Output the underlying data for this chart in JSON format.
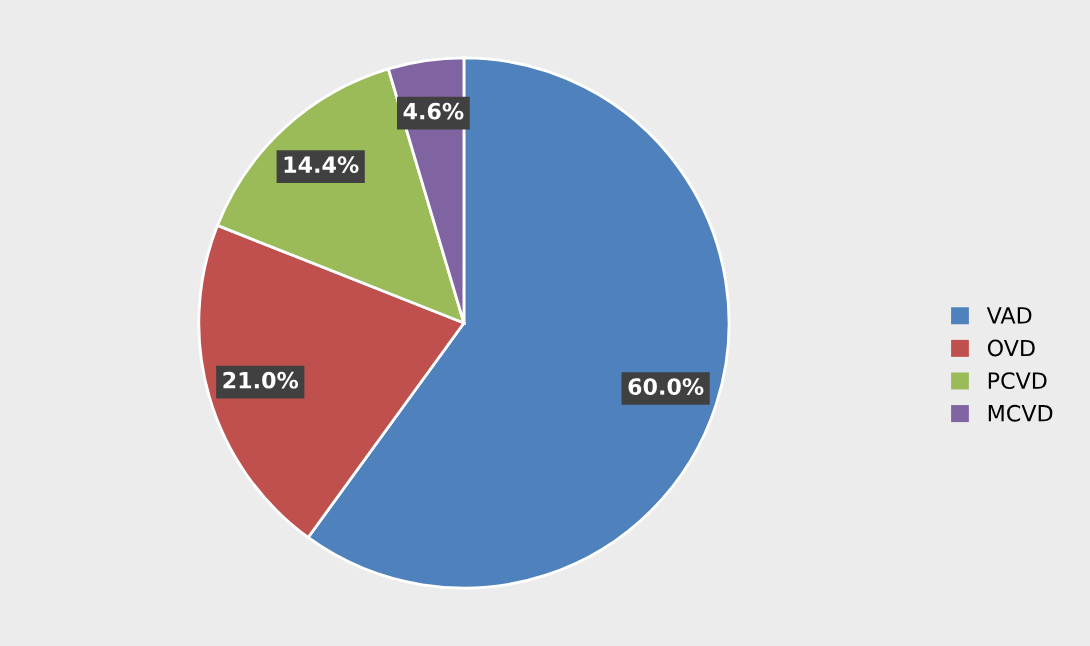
{
  "chart_data": {
    "type": "pie",
    "categories": [
      "VAD",
      "OVD",
      "PCVD",
      "MCVD"
    ],
    "values": [
      60.0,
      21.0,
      14.4,
      4.6
    ],
    "colors": [
      "#4f81bd",
      "#c0504d",
      "#9bbb59",
      "#8064a2"
    ],
    "value_labels": [
      "60.0%",
      "21.0%",
      "14.4%",
      "4.6%"
    ],
    "legend": "right"
  }
}
